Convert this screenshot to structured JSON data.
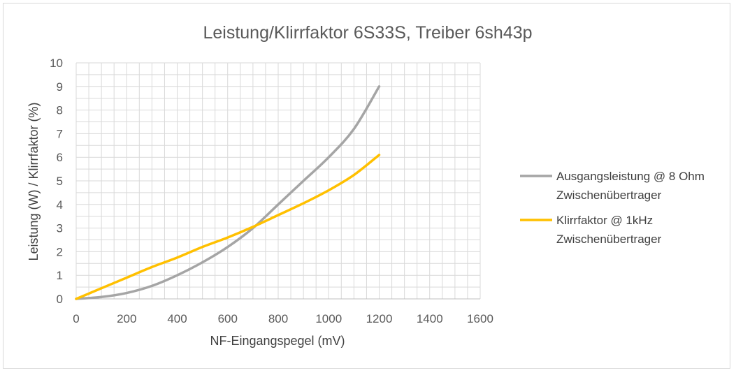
{
  "chart_data": {
    "type": "line",
    "title": "Leistung/Klirrfaktor 6S33S, Treiber 6sh43p",
    "xlabel": "NF-Eingangspegel (mV)",
    "ylabel": "Leistung (W) / Klirrfaktor (%)",
    "xlim": [
      0,
      1600
    ],
    "ylim": [
      0,
      10
    ],
    "x_ticks": [
      0,
      200,
      400,
      600,
      800,
      1000,
      1200,
      1400,
      1600
    ],
    "y_ticks": [
      0,
      1,
      2,
      3,
      4,
      5,
      6,
      7,
      8,
      9,
      10
    ],
    "grid": true,
    "legend_position": "right",
    "series": [
      {
        "name_lines": [
          "Ausgangsleistung @ 8 Ohm",
          "Zwischenübertrager"
        ],
        "color": "#a5a5a5",
        "x": [
          0,
          100,
          200,
          300,
          400,
          500,
          600,
          700,
          800,
          900,
          1000,
          1100,
          1200
        ],
        "values": [
          0,
          0.08,
          0.25,
          0.55,
          1.0,
          1.55,
          2.2,
          3.0,
          4.0,
          5.0,
          6.0,
          7.2,
          9.0
        ]
      },
      {
        "name_lines": [
          "Klirrfaktor @ 1kHz",
          "Zwischenübertrager"
        ],
        "color": "#ffc000",
        "x": [
          0,
          100,
          200,
          300,
          400,
          500,
          600,
          700,
          800,
          900,
          1000,
          1100,
          1200
        ],
        "values": [
          0,
          0.45,
          0.9,
          1.35,
          1.75,
          2.2,
          2.6,
          3.05,
          3.55,
          4.05,
          4.6,
          5.25,
          6.1
        ]
      }
    ]
  }
}
